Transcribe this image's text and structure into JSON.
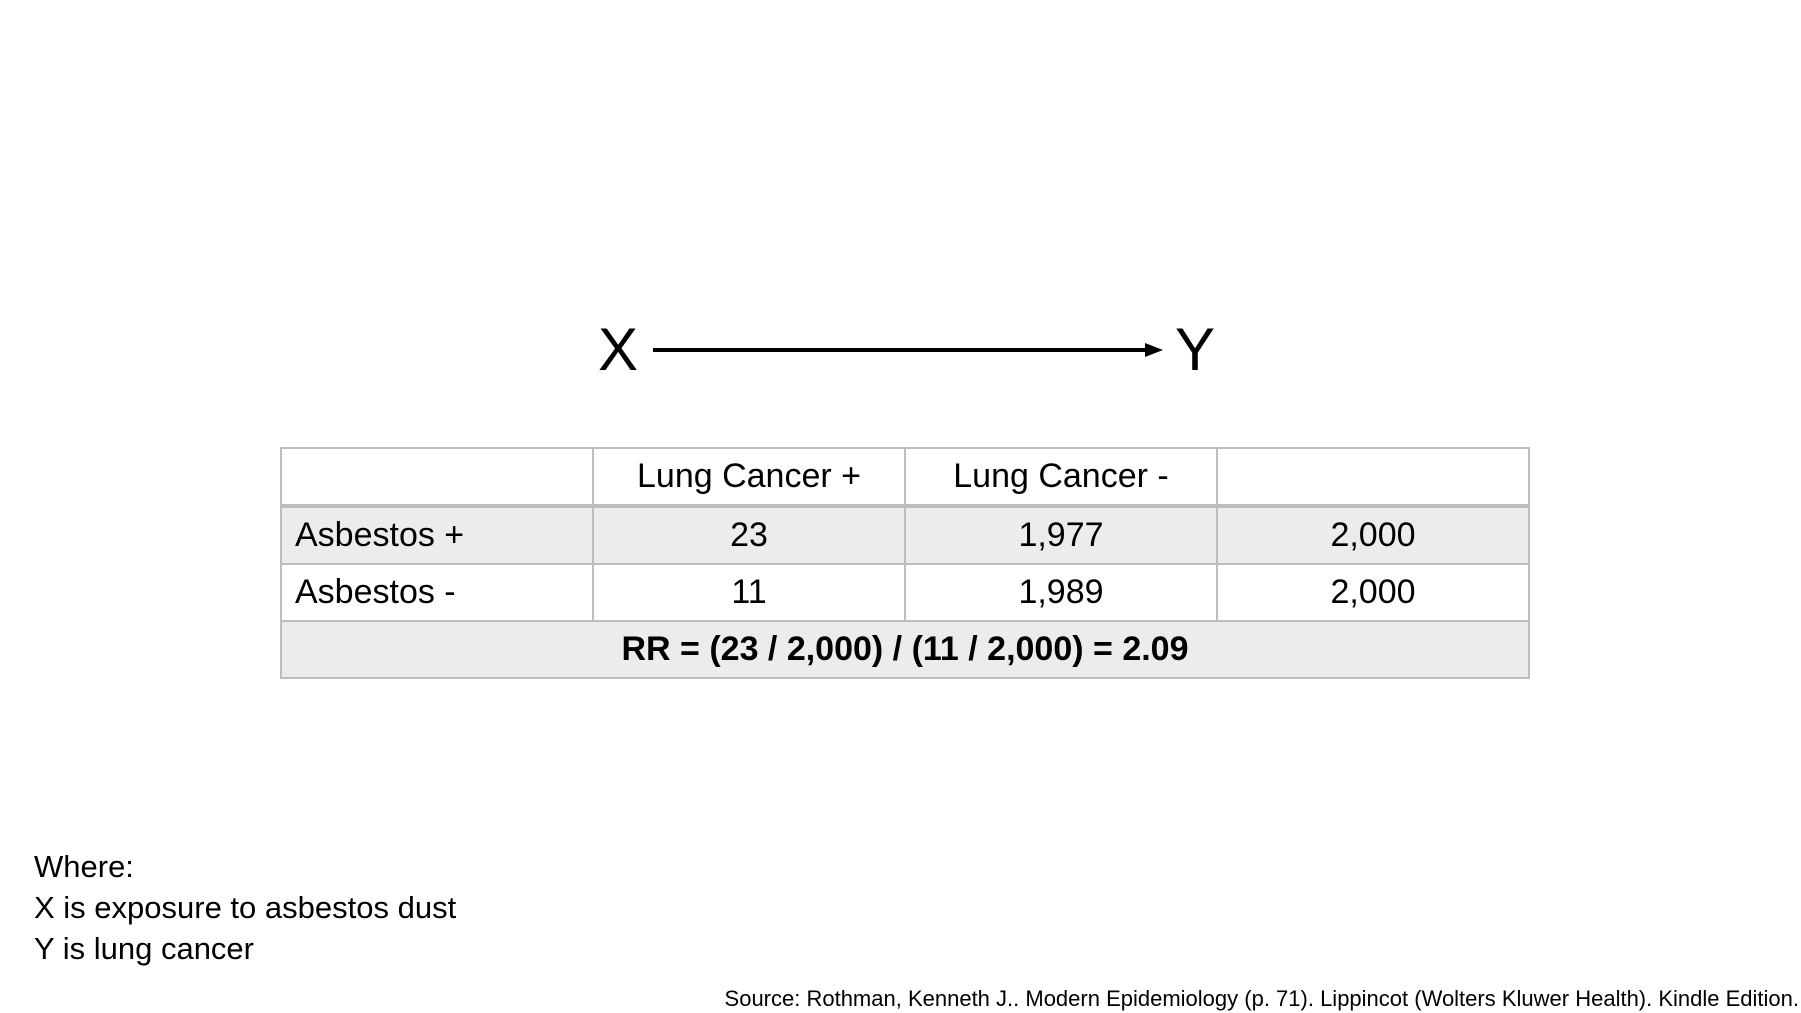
{
  "diagram": {
    "cause": "X",
    "effect": "Y"
  },
  "table": {
    "columns": [
      "",
      "Lung Cancer +",
      "Lung Cancer -",
      ""
    ],
    "rows": [
      {
        "label": "Asbestos +",
        "cancer_pos": "23",
        "cancer_neg": "1,977",
        "total": "2,000"
      },
      {
        "label": "Asbestos -",
        "cancer_pos": "11",
        "cancer_neg": "1,989",
        "total": "2,000"
      }
    ],
    "rr": "RR = (23 / 2,000) / (11 / 2,000) = 2.09"
  },
  "notes": {
    "heading": "Where:",
    "lines": [
      "X is exposure to asbestos dust",
      "Y is lung cancer"
    ]
  },
  "source": "Source: Rothman, Kenneth J.. Modern Epidemiology (p. 71). Lippincot (Wolters Kluwer Health). Kindle Edition."
}
